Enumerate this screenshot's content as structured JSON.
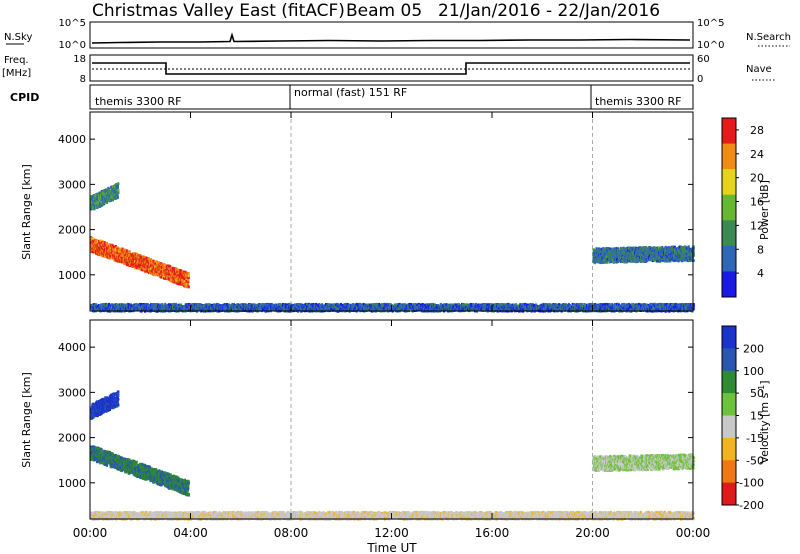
{
  "header": {
    "station": "Christmas Valley East (fitACF)",
    "beam": "Beam 05",
    "date_range": "21/Jan/2016 - 22/Jan/2016"
  },
  "strips": {
    "nsky_label": "N.Sky",
    "nsky_ticks": [
      "10^5",
      "10^0"
    ],
    "nsearch_label": "N.Search",
    "nsearch_ticks": [
      "10^5",
      "10^0"
    ],
    "freq_label": "Freq.",
    "freq_unit": "[MHz]",
    "freq_ticks": [
      "18",
      "8"
    ],
    "nave_label": "Nave",
    "nave_ticks": [
      "60",
      "0"
    ],
    "cpid_label": "CPID",
    "cpid_segments": [
      "themis 3300 RF",
      "normal (fast) 151 RF",
      "themis 3300 RF"
    ]
  },
  "chart_data": [
    {
      "type": "heatmap",
      "title": "Power",
      "ylabel": "Slant Range [km]",
      "xlabel": "Time UT",
      "x_ticks": [
        "00:00",
        "04:00",
        "08:00",
        "12:00",
        "16:00",
        "20:00",
        "00:00"
      ],
      "y_ticks": [
        1000,
        2000,
        3000,
        4000
      ],
      "ylim": [
        200,
        4600
      ],
      "xlim_hours": [
        0,
        24
      ],
      "colorbar_label": "Power [dB]",
      "colorbar_ticks": [
        4,
        8,
        12,
        16,
        20,
        24,
        28
      ],
      "clim": [
        0,
        30
      ],
      "colors": [
        "#1a1ae6",
        "#2f66b8",
        "#3b8a55",
        "#66b833",
        "#e6d41a",
        "#f08c14",
        "#e61a1a"
      ],
      "cpid_boundaries_hours": [
        8.0,
        20.0
      ],
      "features": [
        {
          "t": [
            0.0,
            3.9
          ],
          "range_start": 1700,
          "range_end": 900,
          "power": 26
        },
        {
          "t": [
            0.0,
            1.1
          ],
          "range_start": 2600,
          "range_end": 2900,
          "power": 10
        },
        {
          "t": [
            20.0,
            24.0
          ],
          "range_start": 1450,
          "range_end": 1500,
          "power": 8
        },
        {
          "t": [
            0.0,
            24.0
          ],
          "range_start": 300,
          "range_end": 300,
          "power": 6
        }
      ]
    },
    {
      "type": "heatmap",
      "title": "Velocity",
      "ylabel": "Slant Range [km]",
      "xlabel": "Time UT",
      "x_ticks": [
        "00:00",
        "04:00",
        "08:00",
        "12:00",
        "16:00",
        "20:00",
        "00:00"
      ],
      "y_ticks": [
        1000,
        2000,
        3000,
        4000
      ],
      "ylim": [
        200,
        4600
      ],
      "xlim_hours": [
        0,
        24
      ],
      "colorbar_label": "Velocity [m s^-1]",
      "colorbar_ticks": [
        200,
        100,
        50,
        15,
        -15,
        -50,
        -100,
        -200
      ],
      "clim": [
        -250,
        250
      ],
      "colors": [
        "#1a33cc",
        "#2a55b0",
        "#2e8a33",
        "#6cc23a",
        "#c8c8c8",
        "#f0b41e",
        "#f07814",
        "#e01a1a"
      ],
      "cpid_boundaries_hours": [
        8.0,
        20.0
      ],
      "features": [
        {
          "t": [
            0.0,
            3.9
          ],
          "range_start": 1700,
          "range_end": 900,
          "velocity": 120
        },
        {
          "t": [
            0.0,
            1.1
          ],
          "range_start": 2600,
          "range_end": 2900,
          "velocity": 200
        },
        {
          "t": [
            20.0,
            24.0
          ],
          "range_start": 1450,
          "range_end": 1500,
          "velocity": 0
        },
        {
          "t": [
            0.0,
            24.0
          ],
          "range_start": 300,
          "range_end": 300,
          "velocity": -40
        }
      ]
    }
  ]
}
